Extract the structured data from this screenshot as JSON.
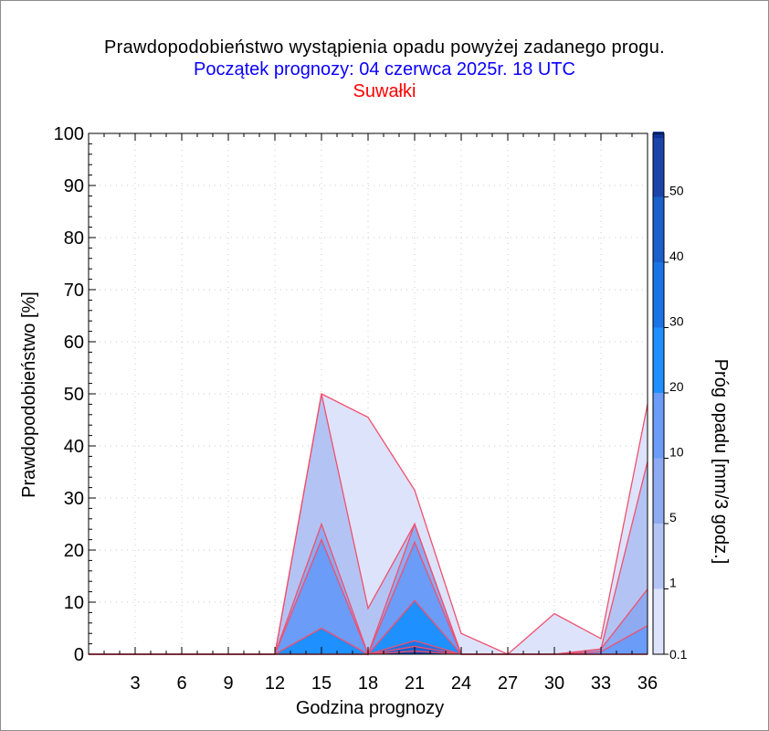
{
  "header": {
    "title": "Prawdopodobieństwo wystąpienia opadu powyżej zadanego progu.",
    "subtitle": "Początek prognozy: 04 czerwca 2025r. 18 UTC",
    "location": "Suwałki"
  },
  "chart_data": {
    "type": "area",
    "title": "Prawdopodobieństwo wystąpienia opadu powyżej zadanego progu.",
    "subtitle": "Początek prognozy: 04 czerwca 2025r. 18 UTC",
    "location": "Suwałki",
    "xlabel": "Godzina prognozy",
    "ylabel": "Prawdopodobieństwo [%]",
    "colorbar_label": "Próg opadu [mm/3 godz.]",
    "xlim": [
      0,
      36
    ],
    "ylim": [
      0,
      100
    ],
    "x_ticks": [
      3,
      6,
      9,
      12,
      15,
      18,
      21,
      24,
      27,
      30,
      33,
      36
    ],
    "y_ticks": [
      0,
      10,
      20,
      30,
      40,
      50,
      60,
      70,
      80,
      90,
      100
    ],
    "grid": true,
    "outline_color": "#f0506e",
    "x": [
      0,
      3,
      6,
      9,
      12,
      15,
      18,
      21,
      24,
      27,
      30,
      33,
      36
    ],
    "series": [
      {
        "threshold": 0.1,
        "color": "#dde3fb",
        "values": [
          0,
          0,
          0,
          0,
          0,
          50,
          45.5,
          31.5,
          4,
          0,
          7.8,
          3,
          48
        ]
      },
      {
        "threshold": 1,
        "color": "#b3c4f4",
        "values": [
          0,
          0,
          0,
          0,
          0,
          50,
          8.8,
          25,
          0,
          0,
          0,
          1,
          37
        ]
      },
      {
        "threshold": 5,
        "color": "#8eaaf0",
        "values": [
          0,
          0,
          0,
          0,
          0,
          25,
          0,
          25,
          0,
          0,
          0,
          1,
          12.5
        ]
      },
      {
        "threshold": 10,
        "color": "#6a9cf8",
        "values": [
          0,
          0,
          0,
          0,
          0,
          22,
          0,
          21.5,
          0,
          0,
          0,
          0.5,
          5.5
        ]
      },
      {
        "threshold": 20,
        "color": "#1e90ff",
        "values": [
          0,
          0,
          0,
          0,
          0,
          5,
          0,
          10.3,
          0,
          0,
          0,
          0,
          0
        ]
      },
      {
        "threshold": 30,
        "color": "#1a74e6",
        "values": [
          0,
          0,
          0,
          0,
          0,
          0,
          0,
          2.6,
          0,
          0,
          0,
          0,
          0
        ]
      },
      {
        "threshold": 40,
        "color": "#1a5fcc",
        "values": [
          0,
          0,
          0,
          0,
          0,
          0,
          0,
          1.5,
          0,
          0,
          0,
          0,
          0
        ]
      },
      {
        "threshold": 50,
        "color": "#1a44aa",
        "values": [
          0,
          0,
          0,
          0,
          0,
          0,
          0,
          0.6,
          0,
          0,
          0,
          0,
          0
        ]
      }
    ],
    "colorbar": {
      "tick_labels": [
        "0.1",
        "1",
        "5",
        "10",
        "20",
        "30",
        "40",
        "50"
      ],
      "colors": [
        "#dde3fb",
        "#b3c4f4",
        "#8eaaf0",
        "#6a9cf8",
        "#1e90ff",
        "#1a74e6",
        "#1a5fcc",
        "#1a44aa"
      ],
      "top_color": "#0d3399"
    }
  }
}
